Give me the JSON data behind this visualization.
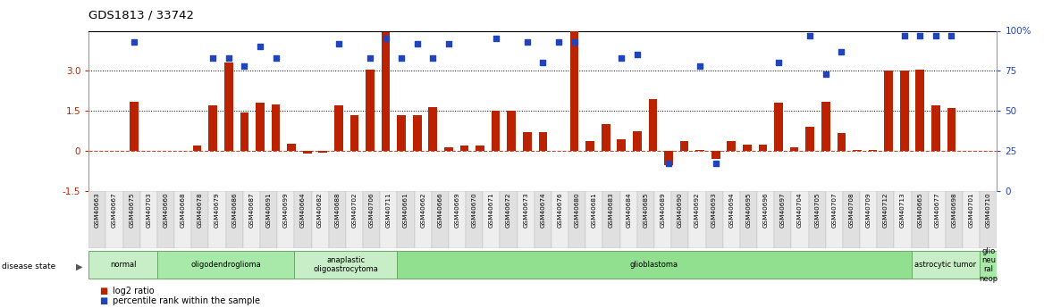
{
  "title": "GDS1813 / 33742",
  "samples": [
    "GSM40663",
    "GSM40667",
    "GSM40675",
    "GSM40703",
    "GSM40660",
    "GSM40668",
    "GSM40678",
    "GSM40679",
    "GSM40686",
    "GSM40687",
    "GSM40691",
    "GSM40699",
    "GSM40664",
    "GSM40682",
    "GSM40688",
    "GSM40702",
    "GSM40706",
    "GSM40711",
    "GSM40661",
    "GSM40662",
    "GSM40666",
    "GSM40669",
    "GSM40670",
    "GSM40671",
    "GSM40672",
    "GSM40673",
    "GSM40674",
    "GSM40676",
    "GSM40680",
    "GSM40681",
    "GSM40683",
    "GSM40684",
    "GSM40685",
    "GSM40689",
    "GSM40690",
    "GSM40692",
    "GSM40693",
    "GSM40694",
    "GSM40695",
    "GSM40696",
    "GSM40697",
    "GSM40704",
    "GSM40705",
    "GSM40707",
    "GSM40708",
    "GSM40709",
    "GSM40712",
    "GSM40713",
    "GSM40665",
    "GSM40677",
    "GSM40698",
    "GSM40701",
    "GSM40710"
  ],
  "log2_ratio": [
    1.85,
    0.0,
    0.0,
    0.0,
    0.2,
    1.7,
    3.3,
    1.45,
    1.8,
    1.75,
    0.27,
    -0.1,
    -0.08,
    1.7,
    1.35,
    3.05,
    4.45,
    1.35,
    1.35,
    1.65,
    0.12,
    0.2,
    0.2,
    1.5,
    1.5,
    0.7,
    0.7,
    0.0,
    4.6,
    0.38,
    1.0,
    0.45,
    0.75,
    1.95,
    -0.55,
    0.38,
    0.04,
    -0.3,
    0.38,
    0.25,
    0.25,
    1.8,
    0.12,
    0.9,
    1.85,
    0.68,
    0.05,
    0.05,
    3.0,
    3.0,
    3.05,
    1.7,
    1.6
  ],
  "percentile": [
    93,
    0,
    0,
    0,
    0,
    83,
    83,
    78,
    90,
    83,
    0,
    0,
    0,
    92,
    0,
    83,
    95,
    83,
    92,
    83,
    92,
    0,
    0,
    95,
    0,
    93,
    80,
    93,
    93,
    0,
    0,
    83,
    85,
    0,
    17,
    0,
    78,
    17,
    0,
    0,
    0,
    80,
    0,
    97,
    73,
    87,
    0,
    0,
    0,
    97,
    97,
    97,
    97
  ],
  "disease_groups": [
    {
      "label": "normal",
      "start": 0,
      "end": 4,
      "color": "#c8eec8"
    },
    {
      "label": "oligodendroglioma",
      "start": 4,
      "end": 12,
      "color": "#a8e8a8"
    },
    {
      "label": "anaplastic\noligoastrocytoma",
      "start": 12,
      "end": 18,
      "color": "#c8eec8"
    },
    {
      "label": "glioblastoma",
      "start": 18,
      "end": 48,
      "color": "#90e090"
    },
    {
      "label": "astrocytic tumor",
      "start": 48,
      "end": 52,
      "color": "#c8eec8"
    },
    {
      "label": "glio\nneu\nral\nneop",
      "start": 52,
      "end": 53,
      "color": "#a8e8a8"
    }
  ],
  "ylim_left": [
    -1.5,
    4.5
  ],
  "ylim_right": [
    0,
    100
  ],
  "yticks_left": [
    -1.5,
    0.0,
    1.5,
    3.0
  ],
  "yticks_right": [
    0,
    25,
    50,
    75,
    100
  ],
  "bar_color": "#bb2200",
  "dot_color": "#2244bb",
  "background_color": "#ffffff",
  "legend_log2": "log2 ratio",
  "legend_pct": "percentile rank within the sample"
}
